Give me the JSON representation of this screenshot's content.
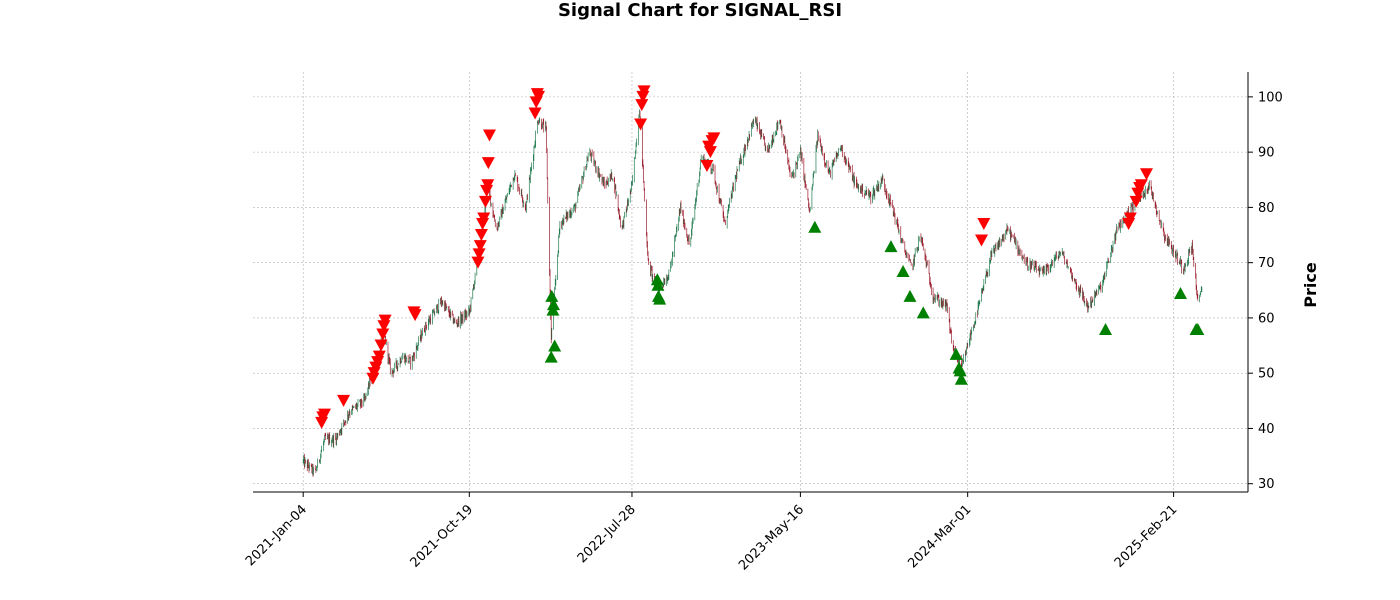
{
  "chart_data": {
    "type": "candlestick",
    "title": "Signal Chart for SIGNAL_RSI",
    "xlabel": "",
    "ylabel": "Price",
    "ylim": [
      28.5,
      104.5
    ],
    "y_ticks": [
      30,
      40,
      50,
      60,
      70,
      80,
      90,
      100
    ],
    "x_ticks": [
      "2021-Jan-04",
      "2021-Oct-19",
      "2022-Jul-28",
      "2023-May-16",
      "2024-Mar-01",
      "2025-Feb-21"
    ],
    "x_tick_dates": [
      "2021-01-04",
      "2021-10-19",
      "2022-07-28",
      "2023-05-16",
      "2024-03-01",
      "2025-02-21"
    ],
    "x_range": [
      "2020-10-09",
      "2025-06-30"
    ],
    "grid": true,
    "colors": {
      "up": "#1f7a4d",
      "down": "#9b1c2c",
      "sell_marker": "#ff0000",
      "buy_marker": "#008000",
      "grid": "#b0b0b0"
    },
    "price_path": [
      [
        "2021-01-04",
        34
      ],
      [
        "2021-01-25",
        32
      ],
      [
        "2021-02-10",
        38
      ],
      [
        "2021-03-01",
        38
      ],
      [
        "2021-03-25",
        43
      ],
      [
        "2021-04-20",
        45
      ],
      [
        "2021-05-10",
        52
      ],
      [
        "2021-05-25",
        57
      ],
      [
        "2021-06-05",
        50
      ],
      [
        "2021-06-25",
        53
      ],
      [
        "2021-07-10",
        52
      ],
      [
        "2021-08-01",
        58
      ],
      [
        "2021-09-01",
        63
      ],
      [
        "2021-09-25",
        59
      ],
      [
        "2021-10-19",
        61
      ],
      [
        "2021-11-05",
        72
      ],
      [
        "2021-11-20",
        84
      ],
      [
        "2021-12-05",
        76
      ],
      [
        "2022-01-05",
        86
      ],
      [
        "2022-01-25",
        80
      ],
      [
        "2022-02-15",
        96
      ],
      [
        "2022-03-01",
        94
      ],
      [
        "2022-03-10",
        56
      ],
      [
        "2022-03-25",
        77
      ],
      [
        "2022-04-20",
        80
      ],
      [
        "2022-05-15",
        90
      ],
      [
        "2022-06-10",
        84
      ],
      [
        "2022-06-25",
        86
      ],
      [
        "2022-07-10",
        76
      ],
      [
        "2022-07-28",
        84
      ],
      [
        "2022-08-10",
        98
      ],
      [
        "2022-08-25",
        70
      ],
      [
        "2022-09-10",
        65
      ],
      [
        "2022-10-01",
        68
      ],
      [
        "2022-10-20",
        80
      ],
      [
        "2022-11-05",
        73
      ],
      [
        "2022-11-25",
        89
      ],
      [
        "2022-12-15",
        87
      ],
      [
        "2023-01-05",
        77
      ],
      [
        "2023-01-25",
        86
      ],
      [
        "2023-02-25",
        96
      ],
      [
        "2023-03-20",
        90
      ],
      [
        "2023-04-10",
        96
      ],
      [
        "2023-04-30",
        85
      ],
      [
        "2023-05-16",
        90
      ],
      [
        "2023-06-01",
        79
      ],
      [
        "2023-06-15",
        93
      ],
      [
        "2023-07-05",
        86
      ],
      [
        "2023-07-25",
        91
      ],
      [
        "2023-08-20",
        84
      ],
      [
        "2023-09-15",
        82
      ],
      [
        "2023-10-05",
        85
      ],
      [
        "2023-10-25",
        79
      ],
      [
        "2023-11-10",
        73
      ],
      [
        "2023-11-25",
        69
      ],
      [
        "2023-12-10",
        75
      ],
      [
        "2024-01-01",
        64
      ],
      [
        "2024-01-25",
        62
      ],
      [
        "2024-02-05",
        54
      ],
      [
        "2024-02-20",
        51
      ],
      [
        "2024-03-01",
        55
      ],
      [
        "2024-03-20",
        62
      ],
      [
        "2024-04-10",
        71
      ],
      [
        "2024-05-10",
        76
      ],
      [
        "2024-06-10",
        70
      ],
      [
        "2024-07-10",
        68
      ],
      [
        "2024-08-10",
        72
      ],
      [
        "2024-09-01",
        67
      ],
      [
        "2024-09-25",
        62
      ],
      [
        "2024-10-20",
        66
      ],
      [
        "2024-11-15",
        76
      ],
      [
        "2024-12-10",
        80
      ],
      [
        "2025-01-10",
        84
      ],
      [
        "2025-02-05",
        75
      ],
      [
        "2025-02-21",
        72
      ],
      [
        "2025-03-10",
        69
      ],
      [
        "2025-03-25",
        73
      ],
      [
        "2025-04-05",
        62
      ],
      [
        "2025-04-12",
        66
      ]
    ],
    "sell_signals": [
      [
        "2021-02-05",
        41
      ],
      [
        "2021-02-07",
        42
      ],
      [
        "2021-02-10",
        42.5
      ],
      [
        "2021-03-15",
        45
      ],
      [
        "2021-05-05",
        49
      ],
      [
        "2021-05-07",
        50
      ],
      [
        "2021-05-10",
        51
      ],
      [
        "2021-05-13",
        52
      ],
      [
        "2021-05-16",
        53
      ],
      [
        "2021-05-19",
        55
      ],
      [
        "2021-05-22",
        57
      ],
      [
        "2021-05-24",
        58.5
      ],
      [
        "2021-05-26",
        59.5
      ],
      [
        "2021-07-15",
        61
      ],
      [
        "2021-07-17",
        60.5
      ],
      [
        "2021-11-03",
        70
      ],
      [
        "2021-11-05",
        71.5
      ],
      [
        "2021-11-07",
        73
      ],
      [
        "2021-11-09",
        75
      ],
      [
        "2021-11-11",
        77
      ],
      [
        "2021-11-13",
        78
      ],
      [
        "2021-11-16",
        81
      ],
      [
        "2021-11-18",
        83
      ],
      [
        "2021-11-20",
        84
      ],
      [
        "2021-11-21",
        88
      ],
      [
        "2021-11-23",
        93
      ],
      [
        "2022-02-10",
        97
      ],
      [
        "2022-02-12",
        99
      ],
      [
        "2022-02-14",
        100.5
      ],
      [
        "2022-02-16",
        100
      ],
      [
        "2022-08-12",
        95
      ],
      [
        "2022-08-14",
        98.5
      ],
      [
        "2022-08-16",
        100
      ],
      [
        "2022-08-18",
        101
      ],
      [
        "2022-12-05",
        87.5
      ],
      [
        "2022-12-08",
        91
      ],
      [
        "2022-12-11",
        90
      ],
      [
        "2022-12-14",
        92
      ],
      [
        "2022-12-17",
        92.5
      ],
      [
        "2024-03-25",
        74
      ],
      [
        "2024-03-29",
        77
      ],
      [
        "2024-12-05",
        77
      ],
      [
        "2024-12-08",
        78
      ],
      [
        "2024-12-18",
        81
      ],
      [
        "2024-12-21",
        82.5
      ],
      [
        "2024-12-24",
        83.5
      ],
      [
        "2024-12-27",
        84
      ],
      [
        "2025-01-05",
        86
      ]
    ],
    "buy_signals": [
      [
        "2022-03-10",
        53
      ],
      [
        "2022-03-11",
        64
      ],
      [
        "2022-03-13",
        61.5
      ],
      [
        "2022-03-14",
        62.5
      ],
      [
        "2022-03-16",
        55
      ],
      [
        "2022-09-10",
        67
      ],
      [
        "2022-09-11",
        66
      ],
      [
        "2022-09-12",
        64
      ],
      [
        "2022-09-14",
        63.5
      ],
      [
        "2023-06-10",
        76.5
      ],
      [
        "2023-10-20",
        73
      ],
      [
        "2023-11-10",
        68.5
      ],
      [
        "2023-11-22",
        64
      ],
      [
        "2023-12-15",
        61
      ],
      [
        "2024-02-10",
        53.5
      ],
      [
        "2024-02-15",
        51
      ],
      [
        "2024-02-17",
        50.5
      ],
      [
        "2024-02-19",
        49
      ],
      [
        "2024-10-26",
        58
      ],
      [
        "2025-03-05",
        64.5
      ],
      [
        "2025-04-01",
        58
      ],
      [
        "2025-04-04",
        58
      ]
    ]
  }
}
